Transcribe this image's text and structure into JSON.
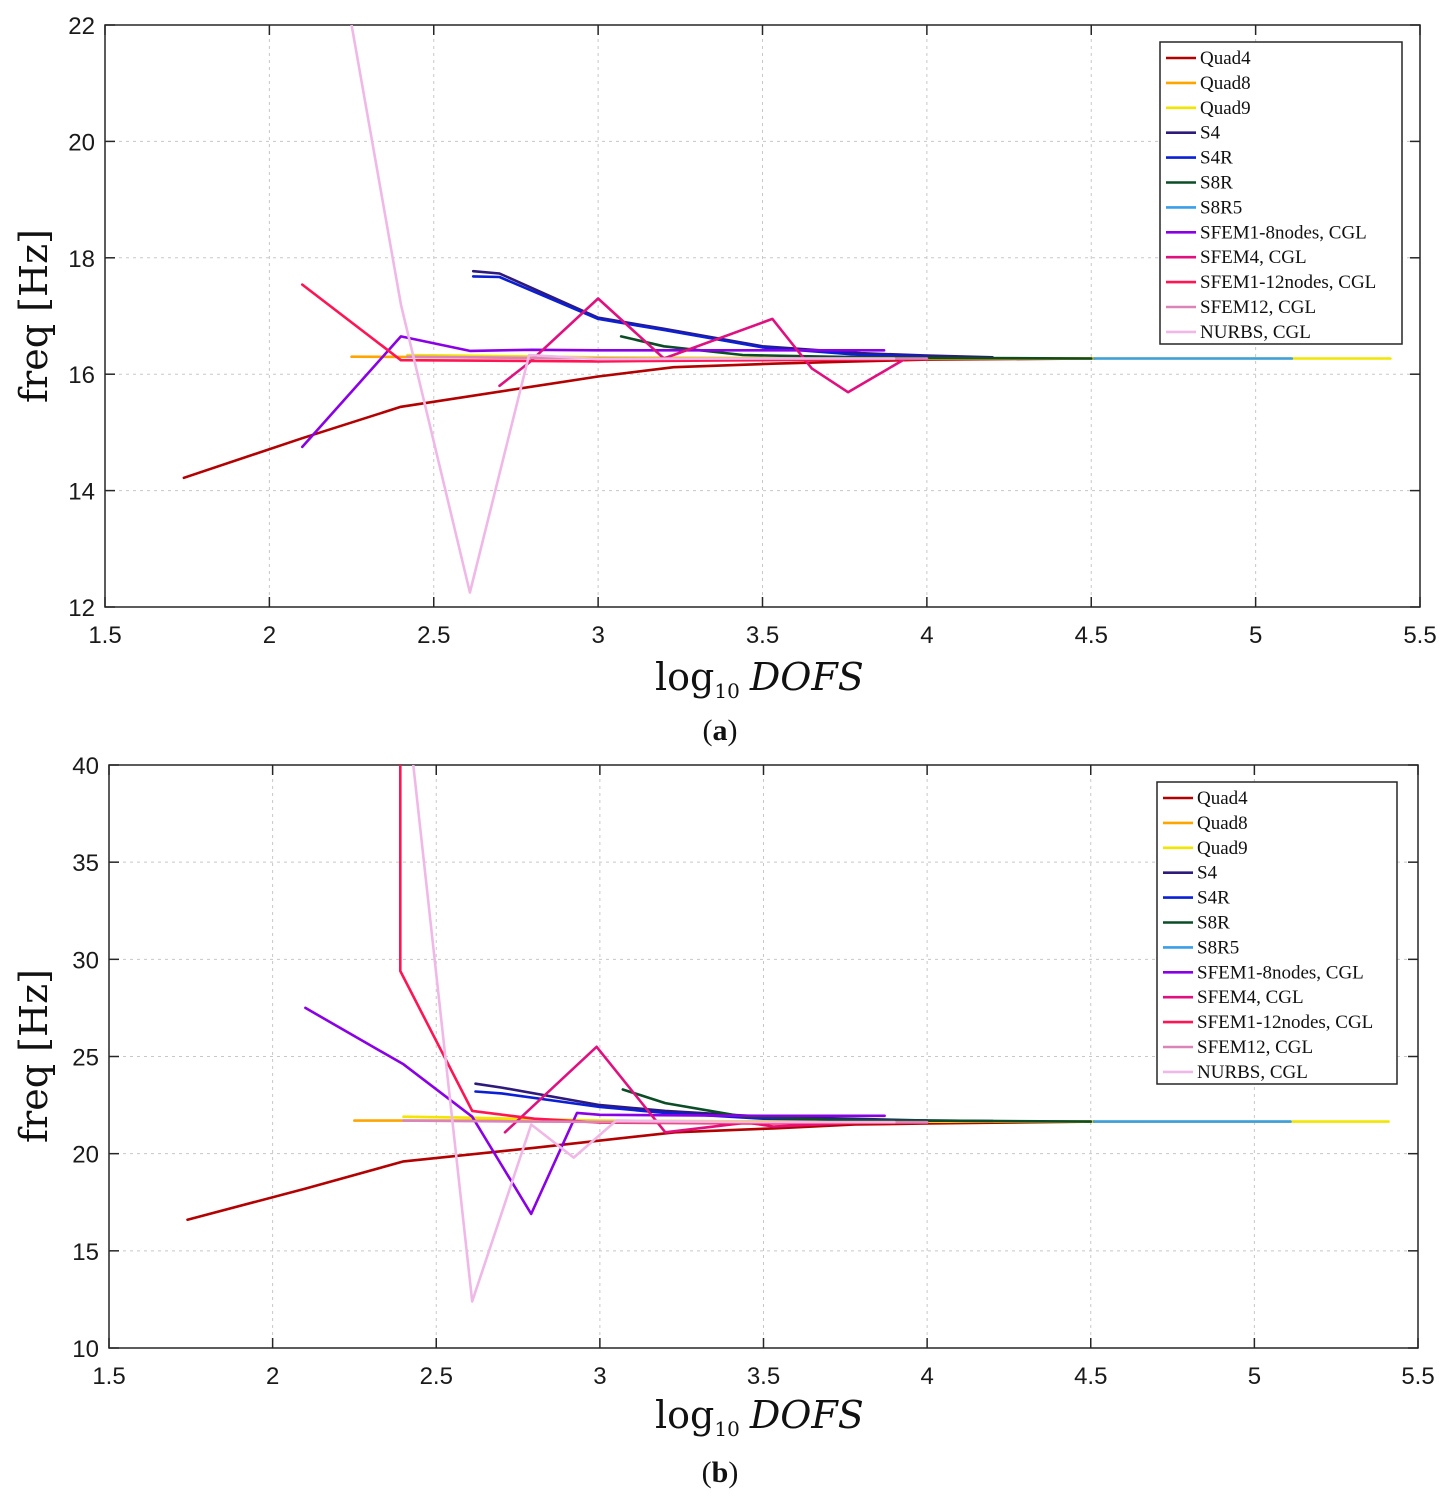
{
  "colors": {
    "Quad4": "#b30000",
    "Quad8": "#ffa500",
    "Quad9": "#f0e600",
    "S4": "#2e1a7a",
    "S4R": "#0a1fd6",
    "S8R": "#0b4d26",
    "S8R5": "#3a9ee8",
    "SFEM1-8nodes, CGL": "#8a00e6",
    "SFEM4, CGL": "#e0117f",
    "SFEM1-12nodes, CGL": "#ff1454",
    "SFEM12, CGL": "#d985b8",
    "NURBS, CGL": "#f0b8e6"
  },
  "chart_data": [
    {
      "type": "line",
      "caption": "a",
      "xlabel_main": "log",
      "xlabel_sub": "10",
      "xlabel_var": "DOFS",
      "ylabel": "freq [Hz]",
      "xlim": [
        1.5,
        5.5
      ],
      "ylim": [
        12,
        22
      ],
      "xticks": [
        1.5,
        2,
        2.5,
        3,
        3.5,
        4,
        4.5,
        5,
        5.5
      ],
      "xtick_labels": [
        "1.5",
        "2",
        "2.5",
        "3",
        "3.5",
        "4",
        "4.5",
        "5",
        "5.5"
      ],
      "yticks": [
        12,
        14,
        16,
        18,
        20,
        22
      ],
      "ytick_labels": [
        "12",
        "14",
        "16",
        "18",
        "20",
        "22"
      ],
      "grid": true,
      "legend_position": "top-right",
      "series": [
        {
          "name": "Quad4",
          "x": [
            1.74,
            2.1,
            2.4,
            3.0,
            3.23,
            3.53,
            3.78,
            4.0,
            4.51
          ],
          "y": [
            14.22,
            14.9,
            15.44,
            15.96,
            16.12,
            16.18,
            16.22,
            16.25,
            16.27
          ]
        },
        {
          "name": "Quad8",
          "x": [
            2.25,
            2.6,
            2.9,
            3.2,
            3.5,
            4.0,
            4.5
          ],
          "y": [
            16.3,
            16.29,
            16.28,
            16.28,
            16.27,
            16.27,
            16.27
          ]
        },
        {
          "name": "Quad9",
          "x": [
            2.42,
            3.0,
            3.5,
            4.0,
            4.51,
            5.11,
            5.41
          ],
          "y": [
            16.33,
            16.29,
            16.28,
            16.27,
            16.27,
            16.27,
            16.27
          ]
        },
        {
          "name": "S4",
          "x": [
            2.62,
            2.7,
            3.0,
            3.2,
            3.5,
            3.8,
            4.0,
            4.2
          ],
          "y": [
            17.77,
            17.73,
            16.97,
            16.78,
            16.48,
            16.36,
            16.32,
            16.29
          ]
        },
        {
          "name": "S4R",
          "x": [
            2.62,
            2.7,
            3.0,
            3.2,
            3.5,
            3.8,
            4.0
          ],
          "y": [
            17.68,
            17.67,
            16.95,
            16.76,
            16.46,
            16.33,
            16.3
          ]
        },
        {
          "name": "S8R",
          "x": [
            3.07,
            3.2,
            3.44,
            3.7,
            4.0,
            4.5
          ],
          "y": [
            16.65,
            16.48,
            16.33,
            16.3,
            16.28,
            16.27
          ]
        },
        {
          "name": "S8R5",
          "x": [
            4.51,
            5.11
          ],
          "y": [
            16.27,
            16.27
          ]
        },
        {
          "name": "SFEM1-8nodes, CGL",
          "x": [
            2.1,
            2.4,
            2.61,
            2.8,
            3.0,
            3.5,
            3.87
          ],
          "y": [
            14.75,
            16.65,
            16.4,
            16.42,
            16.41,
            16.41,
            16.41
          ]
        },
        {
          "name": "SFEM4, CGL",
          "x": [
            2.7,
            2.79,
            3.0,
            3.2,
            3.53,
            3.65,
            3.76,
            3.93
          ],
          "y": [
            15.8,
            16.2,
            17.3,
            16.27,
            16.95,
            16.1,
            15.69,
            16.25
          ]
        },
        {
          "name": "SFEM1-12nodes, CGL",
          "x": [
            2.1,
            2.4,
            3.0,
            3.5,
            4.0
          ],
          "y": [
            17.54,
            16.24,
            16.22,
            16.24,
            16.26
          ]
        },
        {
          "name": "SFEM12, CGL",
          "x": [
            2.42,
            2.8,
            3.2,
            3.6,
            4.0
          ],
          "y": [
            16.3,
            16.28,
            16.27,
            16.27,
            16.27
          ]
        },
        {
          "name": "NURBS, CGL",
          "x": [
            2.25,
            2.4,
            2.61,
            2.79,
            3.0,
            3.5,
            3.9
          ],
          "y": [
            22.0,
            17.2,
            12.25,
            16.33,
            16.26,
            16.27,
            16.27
          ]
        }
      ]
    },
    {
      "type": "line",
      "caption": "b",
      "xlabel_main": "log",
      "xlabel_sub": "10",
      "xlabel_var": "DOFS",
      "ylabel": "freq [Hz]",
      "xlim": [
        1.5,
        5.5
      ],
      "ylim": [
        10,
        40
      ],
      "xticks": [
        1.5,
        2,
        2.5,
        3,
        3.5,
        4,
        4.5,
        5,
        5.5
      ],
      "xtick_labels": [
        "1.5",
        "2",
        "2.5",
        "3",
        "3.5",
        "4",
        "4.5",
        "5",
        "5.5"
      ],
      "yticks": [
        10,
        15,
        20,
        25,
        30,
        35,
        40
      ],
      "ytick_labels": [
        "10",
        "15",
        "20",
        "25",
        "30",
        "35",
        "40"
      ],
      "grid": true,
      "legend_position": "top-right",
      "series": [
        {
          "name": "Quad4",
          "x": [
            1.74,
            2.1,
            2.4,
            2.8,
            3.23,
            3.53,
            3.78,
            4.0,
            4.51
          ],
          "y": [
            16.6,
            18.2,
            19.6,
            20.3,
            21.1,
            21.3,
            21.5,
            21.55,
            21.65
          ]
        },
        {
          "name": "Quad8",
          "x": [
            2.25,
            2.6,
            3.0,
            3.5,
            4.0,
            4.5
          ],
          "y": [
            21.7,
            21.7,
            21.68,
            21.66,
            21.65,
            21.65
          ]
        },
        {
          "name": "Quad9",
          "x": [
            2.4,
            2.6,
            3.0,
            3.5,
            4.0,
            4.51,
            5.11,
            5.41
          ],
          "y": [
            21.9,
            21.85,
            21.7,
            21.66,
            21.65,
            21.65,
            21.65,
            21.65
          ]
        },
        {
          "name": "S4",
          "x": [
            2.62,
            2.7,
            3.0,
            3.2,
            3.5,
            4.0,
            4.2
          ],
          "y": [
            23.6,
            23.4,
            22.5,
            22.2,
            21.9,
            21.7,
            21.68
          ]
        },
        {
          "name": "S4R",
          "x": [
            2.62,
            2.7,
            3.0,
            3.2,
            3.5,
            4.0
          ],
          "y": [
            23.2,
            23.1,
            22.4,
            22.1,
            21.8,
            21.7
          ]
        },
        {
          "name": "S8R",
          "x": [
            3.07,
            3.2,
            3.44,
            3.7,
            4.0,
            4.5
          ],
          "y": [
            23.3,
            22.6,
            21.9,
            21.75,
            21.7,
            21.65
          ]
        },
        {
          "name": "S8R5",
          "x": [
            4.51,
            5.11
          ],
          "y": [
            21.65,
            21.65
          ]
        },
        {
          "name": "SFEM1-8nodes, CGL",
          "x": [
            2.1,
            2.4,
            2.61,
            2.79,
            2.93,
            3.0,
            3.5,
            3.87
          ],
          "y": [
            27.5,
            24.6,
            21.9,
            16.9,
            22.1,
            22.0,
            21.95,
            21.95
          ]
        },
        {
          "name": "SFEM4, CGL",
          "x": [
            2.71,
            2.99,
            3.2,
            3.45,
            3.53,
            3.8,
            4.0
          ],
          "y": [
            21.1,
            25.5,
            21.1,
            21.6,
            21.4,
            21.6,
            21.6
          ]
        },
        {
          "name": "SFEM1-12nodes, CGL",
          "x": [
            2.39,
            2.39,
            2.61,
            2.8,
            3.0,
            3.5,
            4.0
          ],
          "y": [
            40.0,
            29.4,
            22.2,
            21.8,
            21.6,
            21.55,
            21.6
          ]
        },
        {
          "name": "SFEM12, CGL",
          "x": [
            2.4,
            2.8,
            3.2,
            3.6,
            4.0
          ],
          "y": [
            21.7,
            21.65,
            21.62,
            21.62,
            21.62
          ]
        },
        {
          "name": "NURBS, CGL",
          "x": [
            2.43,
            2.61,
            2.79,
            2.92,
            3.05,
            3.5,
            3.9
          ],
          "y": [
            40.0,
            12.4,
            21.5,
            19.8,
            21.7,
            21.62,
            21.62
          ]
        }
      ]
    }
  ]
}
